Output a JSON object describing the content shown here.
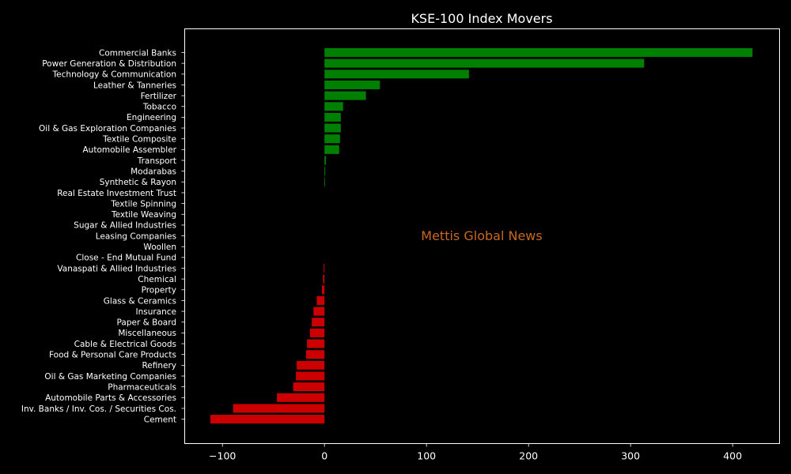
{
  "chart_data": {
    "type": "bar",
    "orientation": "horizontal",
    "title": "KSE-100 Index Movers",
    "watermark": "Mettis Global News",
    "xlabel": "",
    "ylabel": "",
    "xlim": [
      -137,
      446
    ],
    "xticks": [
      -100,
      0,
      100,
      200,
      300,
      400
    ],
    "xtick_labels": [
      "−100",
      "0",
      "100",
      "200",
      "300",
      "400"
    ],
    "grid": false,
    "positive_color": "#008000",
    "negative_color": "#cc0000",
    "categories": [
      "Commercial Banks",
      "Power Generation & Distribution",
      "Technology & Communication",
      "Leather & Tanneries",
      "Fertilizer",
      "Tobacco",
      "Engineering",
      "Oil & Gas Exploration Companies",
      "Textile Composite",
      "Automobile Assembler",
      "Transport",
      "Modarabas",
      "Synthetic & Rayon",
      "Real Estate Investment Trust",
      "Textile Spinning",
      "Textile Weaving",
      "Sugar & Allied Industries",
      "Leasing Companies",
      "Woollen",
      "Close - End Mutual Fund",
      "Vanaspati & Allied Industries",
      "Chemical",
      "Property",
      "Glass & Ceramics",
      "Insurance",
      "Paper & Board",
      "Miscellaneous",
      "Cable & Electrical Goods",
      "Food & Personal Care Products",
      "Refinery",
      "Oil & Gas Marketing Companies",
      "Pharmaceuticals",
      "Automobile Parts & Accessories",
      "Inv. Banks / Inv. Cos. / Securities Cos.",
      "Cement"
    ],
    "values": [
      419.5,
      313.3,
      141.6,
      54.3,
      40.6,
      18.2,
      16.0,
      16.0,
      15.2,
      14.4,
      1.5,
      0.8,
      0.6,
      0,
      0,
      0,
      0,
      0,
      0,
      0,
      -0.8,
      -1.4,
      -2.5,
      -7.6,
      -10.8,
      -12.4,
      -14.3,
      -17.1,
      -18.0,
      -27.2,
      -28.0,
      -30.7,
      -46.6,
      -89.6,
      -111.8
    ]
  }
}
